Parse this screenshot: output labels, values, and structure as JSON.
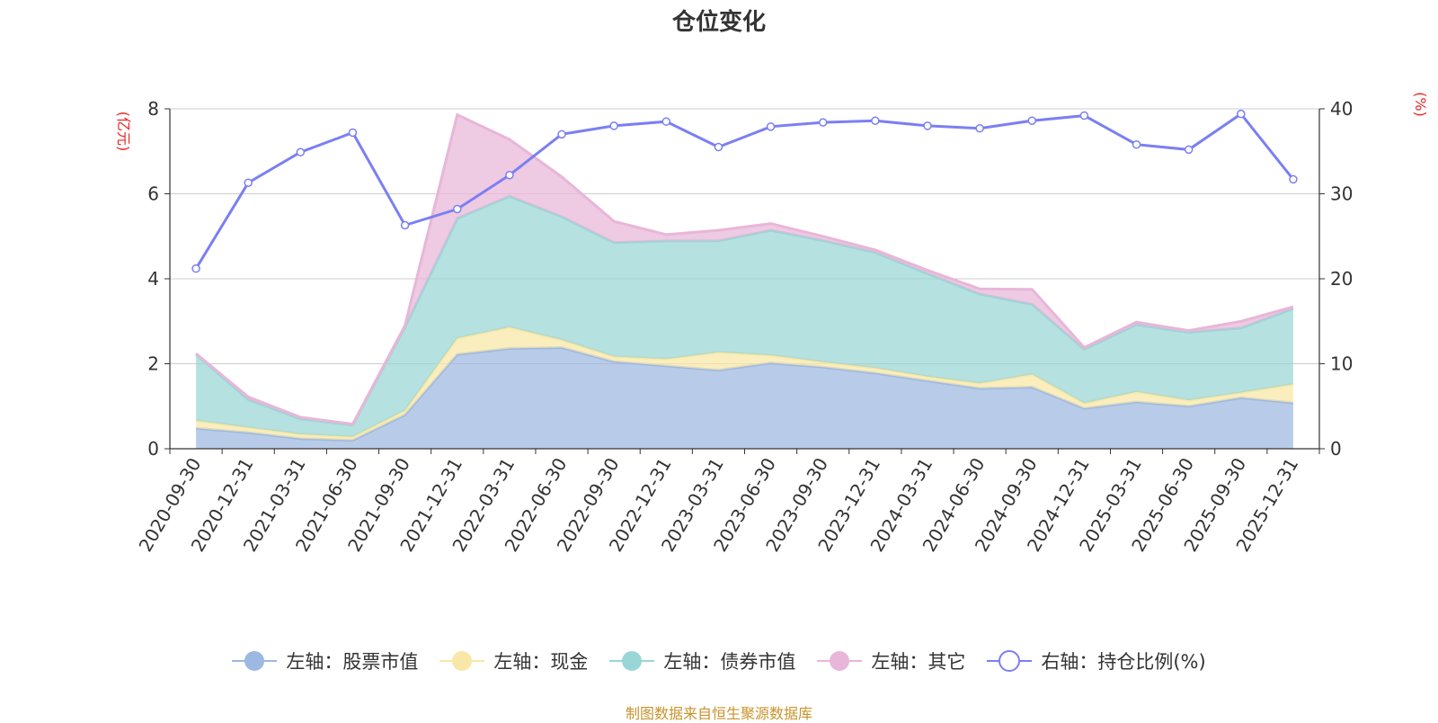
{
  "chart_data": {
    "type": "area",
    "title": "仓位变化",
    "ylabel_left": "(亿元)",
    "ylabel_right": "(%)",
    "ylim_left": [
      0,
      8
    ],
    "ylim_right": [
      0,
      40
    ],
    "yticks_left": [
      "0",
      "2",
      "4",
      "6",
      "8"
    ],
    "yticks_right": [
      "0",
      "10",
      "20",
      "30",
      "40"
    ],
    "categories": [
      "2020-09-30",
      "2020-12-31",
      "2021-03-31",
      "2021-06-30",
      "2021-09-30",
      "2021-12-31",
      "2022-03-31",
      "2022-06-30",
      "2022-09-30",
      "2022-12-31",
      "2023-03-31",
      "2023-06-30",
      "2023-09-30",
      "2023-12-31",
      "2024-03-31",
      "2024-06-30",
      "2024-09-30",
      "2024-12-31",
      "2025-03-31",
      "2025-06-30",
      "2025-09-30",
      "2025-12-31"
    ],
    "series": [
      {
        "name": "左轴：股票市值",
        "axis": "left",
        "stacked": true,
        "color": "#9db8e2",
        "values": [
          0.48,
          0.38,
          0.24,
          0.2,
          0.8,
          2.22,
          2.36,
          2.38,
          2.05,
          1.95,
          1.85,
          2.02,
          1.92,
          1.78,
          1.6,
          1.42,
          1.45,
          0.95,
          1.1,
          1.0,
          1.2,
          1.08
        ]
      },
      {
        "name": "左轴：现金",
        "axis": "left",
        "stacked": true,
        "color": "#f8e7a6",
        "values": [
          0.18,
          0.12,
          0.1,
          0.08,
          0.1,
          0.38,
          0.5,
          0.18,
          0.12,
          0.16,
          0.42,
          0.18,
          0.12,
          0.12,
          0.1,
          0.12,
          0.3,
          0.12,
          0.24,
          0.14,
          0.12,
          0.44
        ]
      },
      {
        "name": "左轴：债券市值",
        "axis": "left",
        "stacked": true,
        "color": "#99d6d6",
        "values": [
          1.56,
          0.66,
          0.36,
          0.28,
          1.96,
          2.82,
          3.08,
          2.9,
          2.68,
          2.78,
          2.62,
          2.94,
          2.86,
          2.72,
          2.42,
          2.1,
          1.65,
          1.27,
          1.58,
          1.6,
          1.52,
          1.78
        ]
      },
      {
        "name": "左轴：其它",
        "axis": "left",
        "stacked": true,
        "color": "#e8b6d8",
        "values": [
          0.02,
          0.06,
          0.04,
          0.02,
          0.04,
          2.44,
          1.34,
          0.94,
          0.5,
          0.15,
          0.25,
          0.16,
          0.1,
          0.06,
          0.08,
          0.12,
          0.35,
          0.04,
          0.06,
          0.04,
          0.16,
          0.04
        ]
      },
      {
        "name": "右轴：持仓比例(%)",
        "axis": "right",
        "type": "line",
        "color": "#7b7ff2",
        "values": [
          21.2,
          31.3,
          34.9,
          37.2,
          26.3,
          28.2,
          32.2,
          37.0,
          38.0,
          38.5,
          35.5,
          37.9,
          38.4,
          38.6,
          38.0,
          37.7,
          38.6,
          39.2,
          35.8,
          35.2,
          39.4,
          31.7
        ]
      }
    ],
    "legend_position": "bottom",
    "grid": true
  },
  "source_note": "制图数据来自恒生聚源数据库"
}
